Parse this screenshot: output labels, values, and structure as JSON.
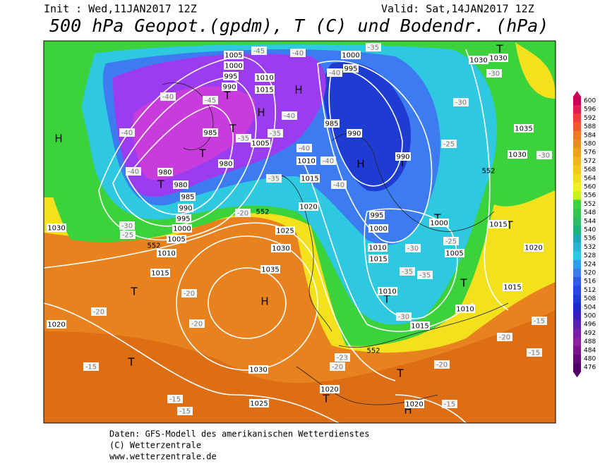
{
  "header": {
    "init": "Init : Wed,11JAN2017 12Z",
    "valid": "Valid: Sat,14JAN2017 12Z",
    "title": "500 hPa Geopot.(gpdm), T (C) und Bodendr. (hPa)"
  },
  "colorbar": [
    600,
    596,
    592,
    588,
    584,
    580,
    576,
    572,
    568,
    564,
    560,
    556,
    552,
    548,
    544,
    540,
    536,
    532,
    528,
    524,
    520,
    516,
    512,
    508,
    504,
    500,
    496,
    492,
    488,
    484,
    480,
    476
  ],
  "map_labels": [
    "H",
    "T",
    "T",
    "H",
    "T",
    "T",
    "T",
    "H",
    "H",
    "T",
    "H",
    "T",
    "T",
    "T",
    "T",
    "T",
    "T",
    "T",
    "H",
    "T",
    "1005",
    "1000",
    "995",
    "990",
    "1010",
    "1015",
    "985",
    "980",
    "980",
    "980",
    "985",
    "990",
    "995",
    "1000",
    "1005",
    "1010",
    "1015",
    "1000",
    "995",
    "985",
    "990",
    "990",
    "1010",
    "1015",
    "1020",
    "1025",
    "1030",
    "1035",
    "1030",
    "1025",
    "1020",
    "1020",
    "995",
    "1000",
    "1010",
    "1015",
    "1010",
    "1015",
    "1010",
    "1005",
    "1000",
    "1015",
    "1020",
    "1015",
    "1030",
    "1030",
    "1035",
    "1030",
    "1020",
    "1030",
    "1005",
    "-45",
    "-40",
    "-40",
    "-45",
    "-40",
    "-40",
    "-40",
    "-35",
    "-35",
    "-40",
    "-40",
    "-40",
    "-40",
    "-35",
    "-35",
    "-30",
    "-30",
    "-25",
    "-20",
    "-20",
    "-20",
    "-20",
    "-15",
    "-25",
    "-30",
    "-15",
    "-15",
    "-25",
    "-30",
    "-35",
    "-35",
    "-30",
    "-20",
    "-15",
    "-15",
    "-20",
    "-15",
    "-20",
    "-23",
    "-30",
    "552",
    "552",
    "552",
    "552"
  ],
  "footer": {
    "line1": "Daten: GFS-Modell des amerikanischen Wetterdienstes",
    "line2": "(C) Wetterzentrale",
    "line3": "www.wetterzentrale.de"
  }
}
